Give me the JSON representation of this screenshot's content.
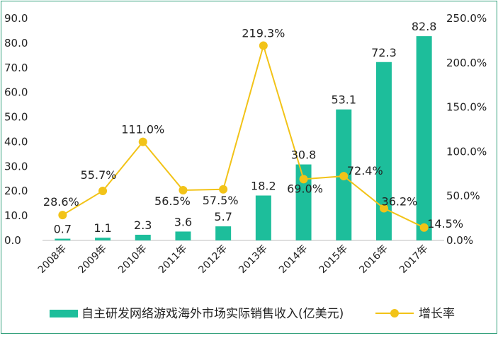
{
  "colors": {
    "bar": "#1dbe9b",
    "line": "#f2c318",
    "axis": "#bfbfbf",
    "border": "#2e9e78"
  },
  "chart_data": {
    "type": "bar",
    "categories": [
      "2008年",
      "2009年",
      "2010年",
      "2011年",
      "2012年",
      "2013年",
      "2014年",
      "2015年",
      "2016年",
      "2017年"
    ],
    "series": [
      {
        "name": "自主研发网络游戏海外市场实际销售收入(亿美元)",
        "type": "bar",
        "axis": "left",
        "values": [
          0.7,
          1.1,
          2.3,
          3.6,
          5.7,
          18.2,
          30.8,
          53.1,
          72.3,
          82.8
        ],
        "labels": [
          "0.7",
          "1.1",
          "2.3",
          "3.6",
          "5.7",
          "18.2",
          "30.8",
          "53.1",
          "72.3",
          "82.8"
        ]
      },
      {
        "name": "增长率",
        "type": "line",
        "axis": "right",
        "values": [
          28.6,
          55.7,
          111.0,
          56.5,
          57.5,
          219.3,
          69.0,
          72.4,
          36.2,
          14.5
        ],
        "labels": [
          "28.6%",
          "55.7%",
          "111.0%",
          "56.5%",
          "57.5%",
          "219.3%",
          "69.0%",
          "72.4%",
          "36.2%",
          "14.5%"
        ]
      }
    ],
    "y_left": {
      "range": [
        0,
        90
      ],
      "ticks": [
        "0.0",
        "10.0",
        "20.0",
        "30.0",
        "40.0",
        "50.0",
        "60.0",
        "70.0",
        "80.0",
        "90.0"
      ]
    },
    "y_right": {
      "range": [
        0,
        250
      ],
      "ticks": [
        "0.0%",
        "50.0%",
        "100.0%",
        "150.0%",
        "200.0%",
        "250.0%"
      ]
    },
    "grid": false,
    "legend": "bottom"
  }
}
